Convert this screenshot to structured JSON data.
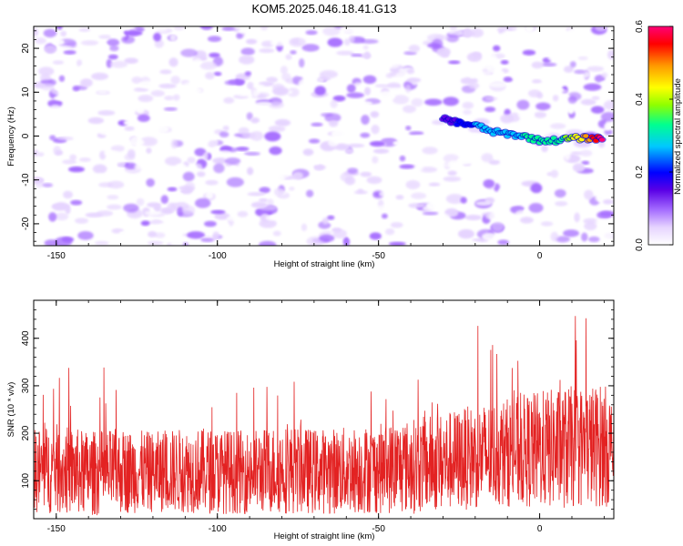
{
  "title": "KOM5.2025.046.18.41.G13",
  "chart_data": [
    {
      "type": "heatmap",
      "xlabel": "Height of straight line (km)",
      "ylabel": "Frequency (Hz)",
      "xlim": [
        -157,
        23
      ],
      "ylim": [
        -25,
        25
      ],
      "xticks": [
        -150,
        -100,
        -50,
        0
      ],
      "xtick_labels": [
        "-150",
        "-100",
        "-50",
        "0"
      ],
      "yticks": [
        -20,
        -10,
        0,
        10,
        20
      ],
      "ytick_labels": [
        "-20",
        "-10",
        "0",
        "10",
        "20"
      ],
      "colorbar": {
        "label": "Normalized spectral amplitude",
        "range": [
          0.0,
          0.6
        ],
        "ticks": [
          0.0,
          0.2,
          0.4,
          0.6
        ],
        "tick_labels": [
          "0.0",
          "0.2",
          "0.4",
          "0.6"
        ],
        "colormap": [
          "#ffffff",
          "#e6d4ff",
          "#a56cff",
          "#5a00e6",
          "#0000ff",
          "#00c8ff",
          "#00ff90",
          "#8fff00",
          "#ffff00",
          "#ff9900",
          "#ff0000",
          "#ff0077"
        ]
      },
      "ridge": {
        "description": "high-amplitude line near 0 Hz",
        "x": [
          -30,
          -25,
          -20,
          -15,
          -10,
          -5,
          0,
          5,
          10,
          15,
          20
        ],
        "y": [
          4,
          3,
          2.5,
          1,
          0.5,
          0,
          -1,
          -1,
          -0.5,
          -0.5,
          -0.5
        ],
        "amplitude": [
          0.15,
          0.2,
          0.25,
          0.28,
          0.25,
          0.3,
          0.3,
          0.3,
          0.4,
          0.5,
          0.6
        ]
      },
      "background_amplitude_range": [
        0.0,
        0.12
      ]
    },
    {
      "type": "line",
      "xlabel": "Height of straight line (km)",
      "ylabel": "SNR (10 * v/v)",
      "xlim": [
        -157,
        23
      ],
      "ylim": [
        20,
        480
      ],
      "xticks": [
        -150,
        -100,
        -50,
        0
      ],
      "xtick_labels": [
        "-150",
        "-100",
        "-50",
        "0"
      ],
      "yticks": [
        100,
        200,
        300,
        400
      ],
      "ytick_labels": [
        "100",
        "200",
        "300",
        "400"
      ],
      "color": "#e32222",
      "series": [
        {
          "x": [
            -157,
            -150,
            -140,
            -130,
            -120,
            -110,
            -100,
            -90,
            -80,
            -70,
            -60,
            -50,
            -40,
            -30,
            -20,
            -10,
            0,
            10,
            20,
            23
          ],
          "values": [
            120,
            125,
            115,
            120,
            118,
            122,
            120,
            118,
            125,
            120,
            122,
            125,
            130,
            140,
            150,
            160,
            165,
            170,
            175,
            160
          ],
          "spread": [
            90,
            95,
            90,
            90,
            85,
            90,
            90,
            88,
            95,
            90,
            92,
            95,
            100,
            105,
            110,
            115,
            125,
            130,
            130,
            120
          ]
        }
      ]
    }
  ]
}
